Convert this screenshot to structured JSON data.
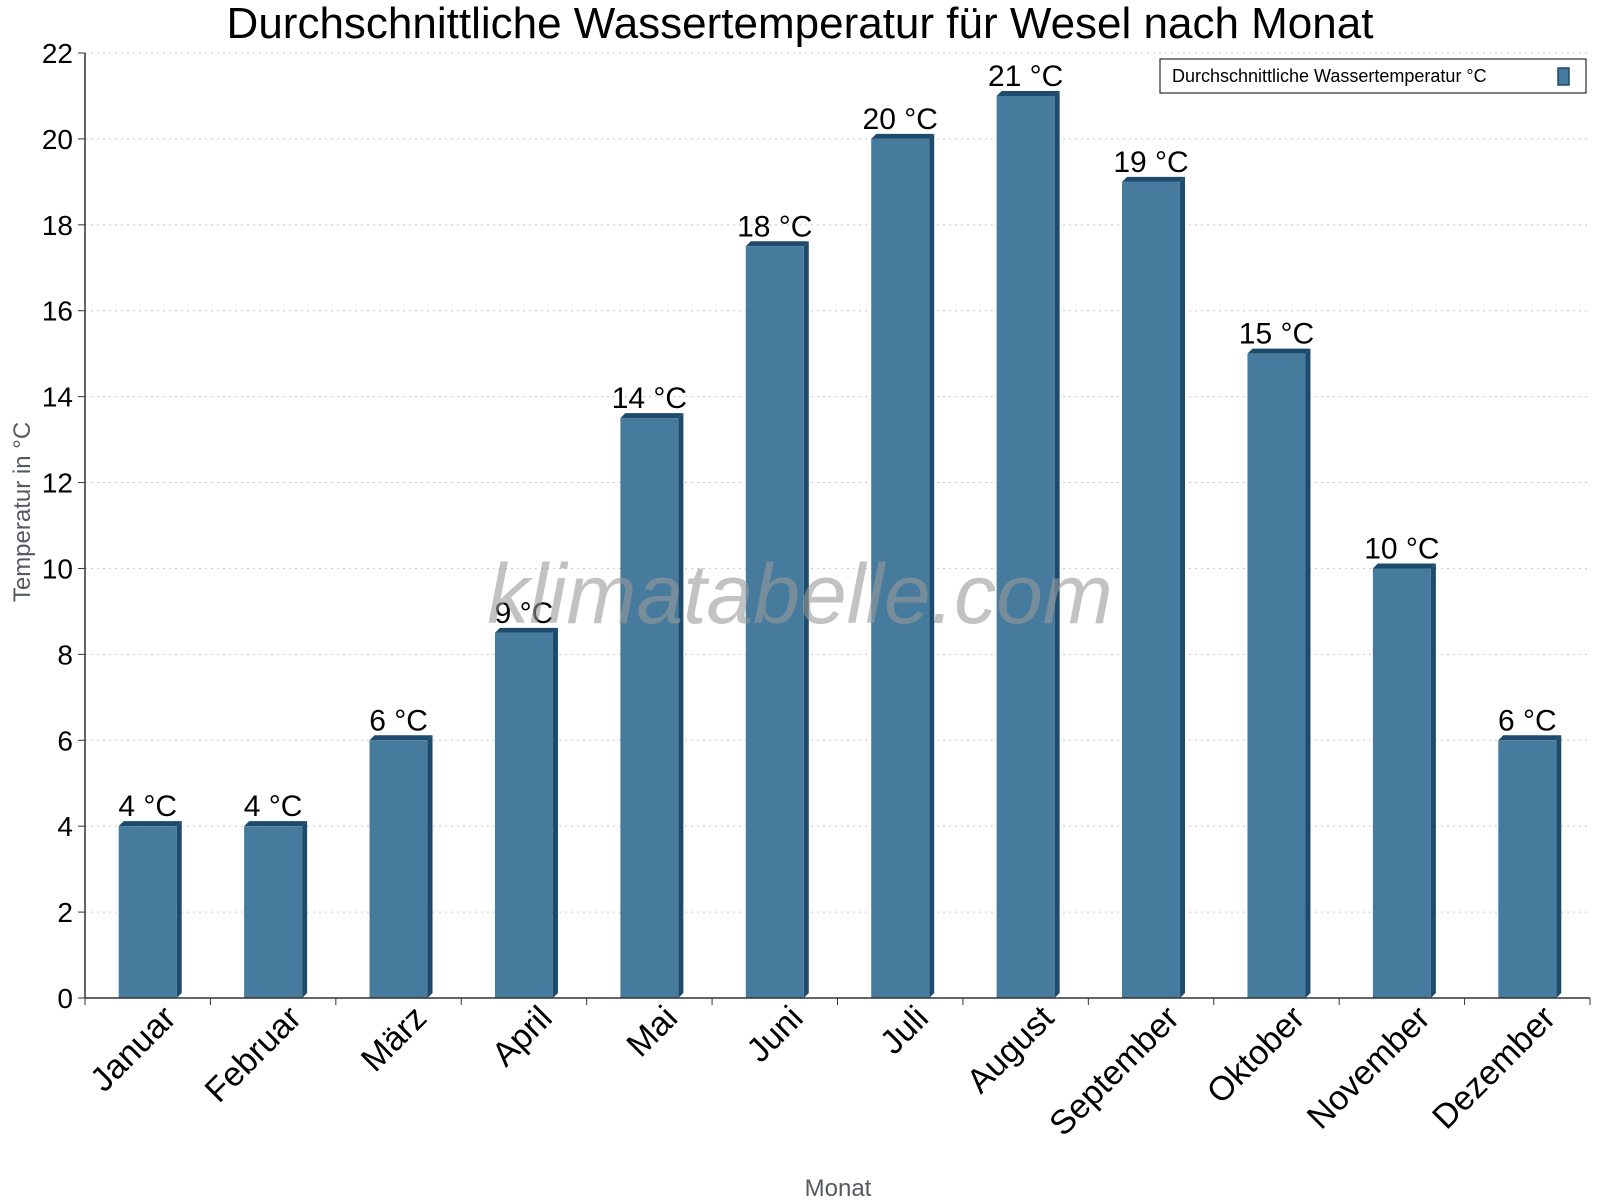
{
  "chart_data": {
    "type": "bar",
    "title": "Durchschnittliche Wassertemperatur für Wesel nach Monat",
    "xlabel": "Monat",
    "ylabel": "Temperatur in °C",
    "categories": [
      "Januar",
      "Februar",
      "März",
      "April",
      "Mai",
      "Juni",
      "Juli",
      "August",
      "September",
      "Oktober",
      "November",
      "Dezember"
    ],
    "series": [
      {
        "name": "Durchschnittliche Wassertemperatur °C",
        "values": [
          4,
          4,
          6,
          8.5,
          13.5,
          17.5,
          20,
          21,
          19,
          15,
          10,
          6
        ],
        "data_labels": [
          "4 °C",
          "4 °C",
          "6 °C",
          "9 °C",
          "14 °C",
          "18 °C",
          "20 °C",
          "21 °C",
          "19 °C",
          "15 °C",
          "10 °C",
          "6 °C"
        ]
      }
    ],
    "ylim": [
      0,
      22
    ],
    "yticks": [
      0,
      2,
      4,
      6,
      8,
      10,
      12,
      14,
      16,
      18,
      20,
      22
    ],
    "grid": true,
    "legend_position": "top-right",
    "colors": {
      "bar": "#467b9d",
      "bar_side": "#1d4b6b",
      "bar_top": "#1d4b6b",
      "grid": "#c8c8c8"
    }
  },
  "watermark": "klimatabelle.com"
}
